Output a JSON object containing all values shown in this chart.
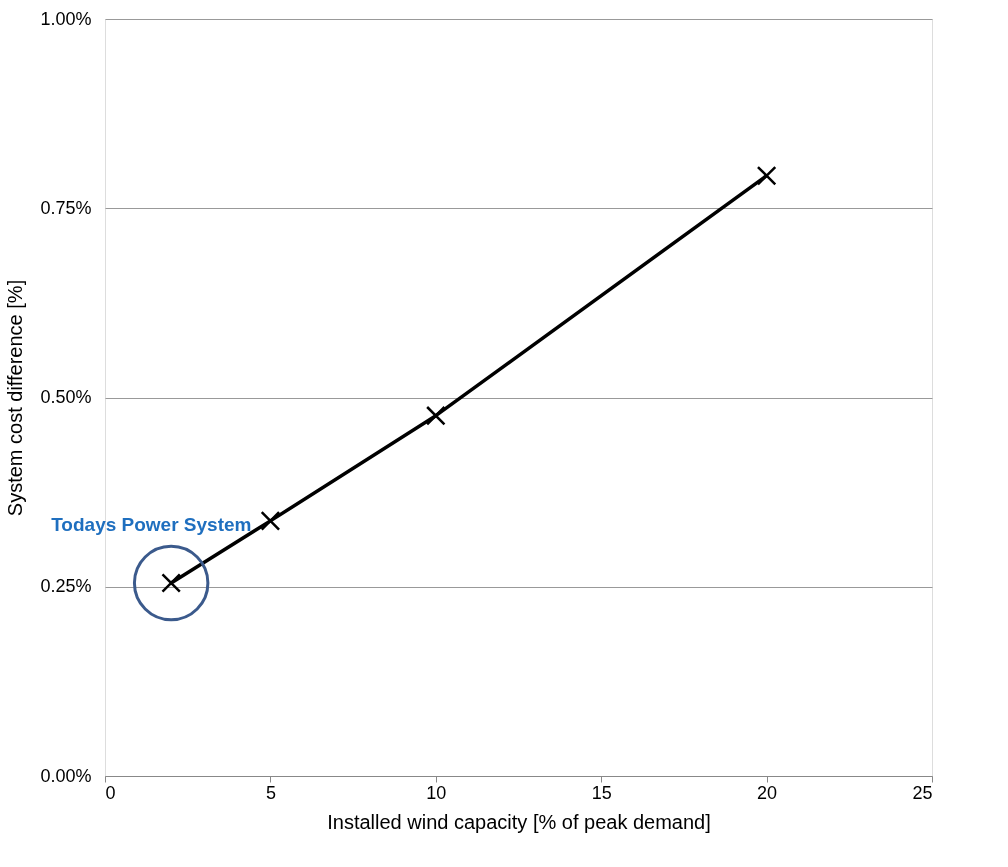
{
  "chart_data": {
    "type": "line",
    "xlabel": "Installed wind capacity [% of peak demand]",
    "ylabel": "System cost difference [%]",
    "series": [
      {
        "color": "#000000",
        "x": [
          2,
          5,
          10,
          20
        ],
        "values": [
          0.255,
          0.337,
          0.476,
          0.793
        ]
      }
    ],
    "xlim": [
      0,
      25
    ],
    "xticks": [
      0,
      5,
      10,
      15,
      20,
      25
    ],
    "ylim": [
      0,
      1
    ],
    "yticks": [
      {
        "value": 0,
        "label": "0.00%"
      },
      {
        "value": 0.25,
        "label": "0.25%"
      },
      {
        "value": 0.5,
        "label": "0.50%"
      },
      {
        "value": 0.75,
        "label": "0.75%"
      },
      {
        "value": 1,
        "label": "1.00%"
      }
    ],
    "grid": "y",
    "marker": "cross",
    "line_style": "solid",
    "annotations": [
      {
        "text": "Todays Power System",
        "x": 2,
        "y": 0.255
      }
    ]
  }
}
